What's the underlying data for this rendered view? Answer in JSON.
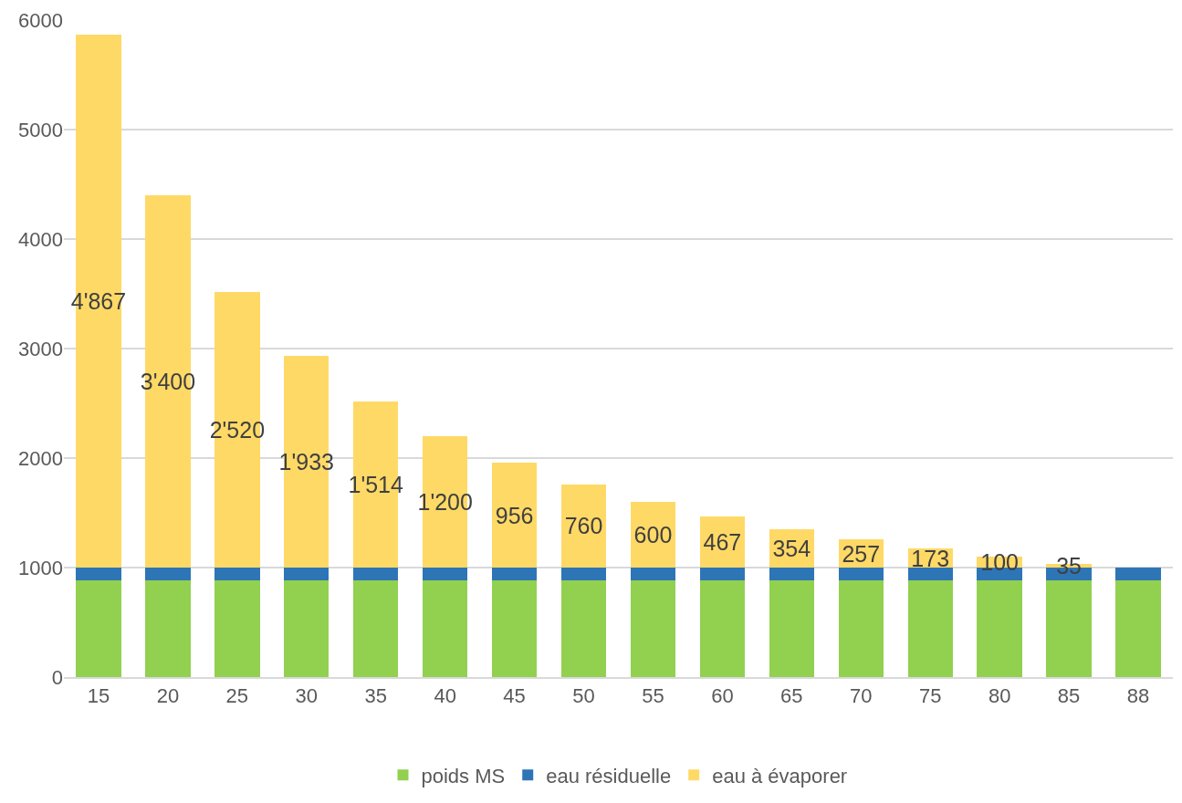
{
  "chart_data": {
    "type": "bar",
    "stacked": true,
    "categories": [
      "15",
      "20",
      "25",
      "30",
      "35",
      "40",
      "45",
      "50",
      "55",
      "60",
      "65",
      "70",
      "75",
      "80",
      "85",
      "88"
    ],
    "series": [
      {
        "name": "poids MS",
        "color": "#92d050",
        "values": [
          880,
          880,
          880,
          880,
          880,
          880,
          880,
          880,
          880,
          880,
          880,
          880,
          880,
          880,
          880,
          880
        ]
      },
      {
        "name": "eau résiduelle",
        "color": "#2e75b6",
        "values": [
          120,
          120,
          120,
          120,
          120,
          120,
          120,
          120,
          120,
          120,
          120,
          120,
          120,
          120,
          120,
          120
        ]
      },
      {
        "name": "eau à évaporer",
        "color": "#ffd966",
        "values": [
          4867,
          3400,
          2520,
          1933,
          1514,
          1200,
          956,
          760,
          600,
          467,
          354,
          257,
          173,
          100,
          35,
          0
        ],
        "value_labels": [
          "4'867",
          "3'400",
          "2'520",
          "1'933",
          "1'514",
          "1'200",
          "956",
          "760",
          "600",
          "467",
          "354",
          "257",
          "173",
          "100",
          "35",
          null
        ]
      }
    ],
    "ylim": [
      0,
      6000
    ],
    "yticks": [
      0,
      1000,
      2000,
      3000,
      4000,
      5000,
      6000
    ],
    "grid": "y",
    "legend": "bottom"
  }
}
